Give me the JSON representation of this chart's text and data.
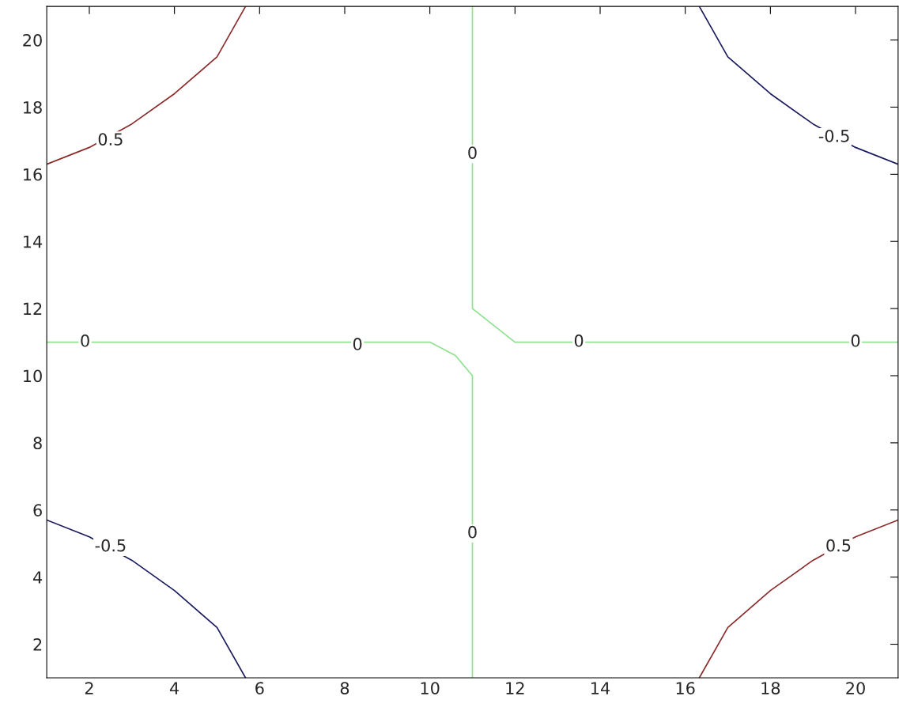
{
  "chart_data": {
    "type": "line",
    "xlim": [
      1,
      21
    ],
    "ylim": [
      1,
      21
    ],
    "xticks": [
      2,
      4,
      6,
      8,
      10,
      12,
      14,
      16,
      18,
      20
    ],
    "yticks": [
      2,
      4,
      6,
      8,
      10,
      12,
      14,
      16,
      18,
      20
    ],
    "grid": false,
    "legend": false,
    "series": [
      {
        "color": "#8b2a2a",
        "x": [
          1,
          2,
          3,
          4,
          5,
          5.67
        ],
        "values": [
          16.3,
          16.8,
          17.5,
          18.4,
          19.5,
          21
        ]
      },
      {
        "color": "#1a1a5e",
        "x": [
          16.33,
          17,
          18,
          19,
          20,
          21
        ],
        "values": [
          21,
          19.5,
          18.4,
          17.5,
          16.8,
          16.3
        ]
      },
      {
        "color": "#1a1a5e",
        "x": [
          1,
          2,
          3,
          4,
          5,
          5.67
        ],
        "values": [
          5.7,
          5.2,
          4.5,
          3.6,
          2.5,
          1
        ]
      },
      {
        "color": "#8b2a2a",
        "x": [
          16.33,
          17,
          18,
          19,
          20,
          21
        ],
        "values": [
          1,
          2.5,
          3.6,
          4.5,
          5.2,
          5.7
        ]
      },
      {
        "color": "#8fe08f",
        "x": [
          1,
          10,
          10.6,
          11,
          11
        ],
        "values": [
          11,
          11,
          10.6,
          10,
          1
        ]
      },
      {
        "color": "#8fe08f",
        "x": [
          11,
          11,
          11.5,
          12,
          21
        ],
        "values": [
          21,
          12,
          11.5,
          11,
          11
        ]
      }
    ],
    "annotations": [
      {
        "text": "0.5",
        "x": 2.5,
        "y": 17.0
      },
      {
        "text": "-0.5",
        "x": 19.5,
        "y": 17.1
      },
      {
        "text": "-0.5",
        "x": 2.5,
        "y": 4.9
      },
      {
        "text": "0.5",
        "x": 19.6,
        "y": 4.9
      },
      {
        "text": "0",
        "x": 1.9,
        "y": 11
      },
      {
        "text": "0",
        "x": 8.3,
        "y": 10.9
      },
      {
        "text": "0",
        "x": 13.5,
        "y": 11
      },
      {
        "text": "0",
        "x": 20,
        "y": 11
      },
      {
        "text": "0",
        "x": 11,
        "y": 16.6
      },
      {
        "text": "0",
        "x": 11,
        "y": 5.3
      }
    ]
  }
}
